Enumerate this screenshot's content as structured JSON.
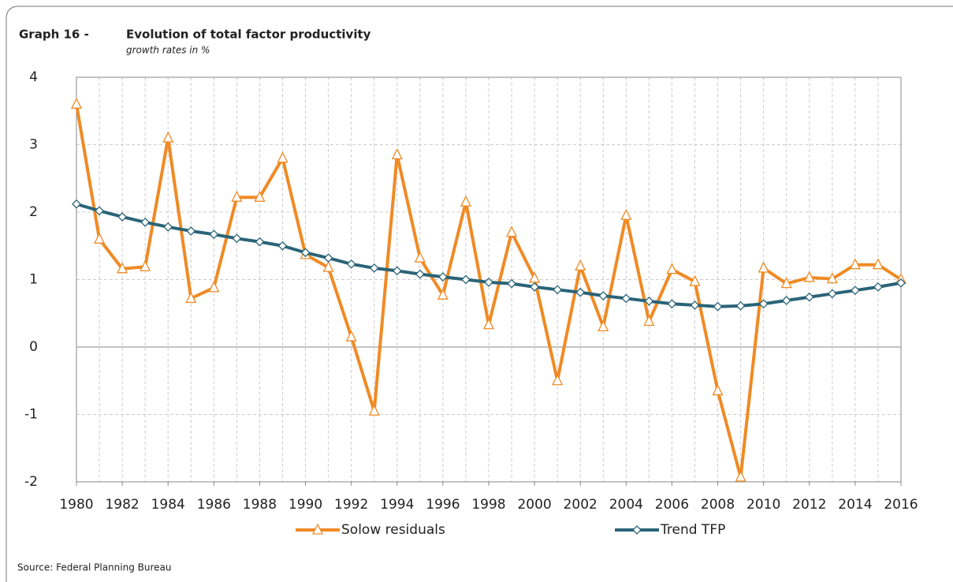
{
  "chart_data": {
    "type": "line",
    "label": "Graph 16 -",
    "title": "Evolution of total factor productivity",
    "subtitle": "growth rates in %",
    "source": "Source: Federal Planning Bureau",
    "x": [
      1980,
      1981,
      1982,
      1983,
      1984,
      1985,
      1986,
      1987,
      1988,
      1989,
      1990,
      1991,
      1992,
      1993,
      1994,
      1995,
      1996,
      1997,
      1998,
      1999,
      2000,
      2001,
      2002,
      2003,
      2004,
      2005,
      2006,
      2007,
      2008,
      2009,
      2010,
      2011,
      2012,
      2013,
      2014,
      2015,
      2016
    ],
    "series": [
      {
        "name": "Solow residuals",
        "color": "#f08a24",
        "marker": "triangle",
        "values": [
          3.6,
          1.6,
          1.16,
          1.19,
          3.1,
          0.72,
          0.88,
          2.22,
          2.22,
          2.8,
          1.37,
          1.18,
          0.15,
          -0.95,
          2.85,
          1.32,
          0.77,
          2.15,
          0.33,
          1.7,
          1.02,
          -0.5,
          1.2,
          0.3,
          1.95,
          0.38,
          1.15,
          0.97,
          -0.65,
          -1.93,
          1.17,
          0.94,
          1.03,
          1.01,
          1.22,
          1.22,
          1.0
        ]
      },
      {
        "name": "Trend TFP",
        "color": "#2a6478",
        "marker": "diamond",
        "values": [
          2.12,
          2.02,
          1.93,
          1.85,
          1.78,
          1.72,
          1.67,
          1.61,
          1.56,
          1.5,
          1.4,
          1.32,
          1.23,
          1.17,
          1.13,
          1.08,
          1.04,
          1.0,
          0.96,
          0.94,
          0.89,
          0.85,
          0.81,
          0.76,
          0.72,
          0.68,
          0.64,
          0.62,
          0.6,
          0.61,
          0.64,
          0.69,
          0.74,
          0.79,
          0.84,
          0.89,
          0.95
        ]
      }
    ],
    "xlim": [
      1980,
      2016
    ],
    "xticks": [
      1980,
      1982,
      1984,
      1986,
      1988,
      1990,
      1992,
      1994,
      1996,
      1998,
      2000,
      2002,
      2004,
      2006,
      2008,
      2010,
      2012,
      2014,
      2016
    ],
    "ylim": [
      -2,
      4
    ],
    "yticks": [
      -2,
      -1,
      0,
      1,
      2,
      3,
      4
    ],
    "grid": true,
    "legend": "bottom"
  }
}
